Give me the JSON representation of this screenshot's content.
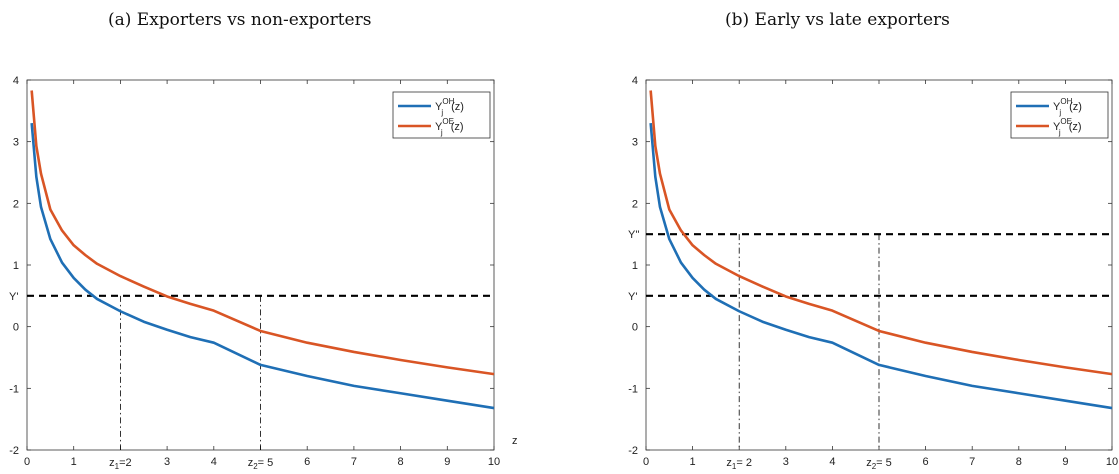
{
  "colors": {
    "oh": "#1f6fb5",
    "oe": "#d95525",
    "axis": "#333333",
    "guide": "#000000"
  },
  "chart_data": [
    {
      "type": "line",
      "title": "(a) Exporters vs non-exporters",
      "xlabel": "z",
      "ylabel": "",
      "xlim": [
        0,
        10
      ],
      "ylim": [
        -2,
        4
      ],
      "xticks": [
        "0",
        "1",
        "2",
        "3",
        "4",
        "5",
        "6",
        "7",
        "8",
        "9",
        "10"
      ],
      "xticks_hidden": [
        2,
        5
      ],
      "yticks": [
        "-2",
        "-1",
        "0",
        "1",
        "2",
        "3",
        "4"
      ],
      "legend_position": "top-right",
      "series": [
        {
          "name_base": "Y",
          "name_sub": "j",
          "name_sup": "OH",
          "name_arg": "(z)",
          "color": "#1f6fb5",
          "x": [
            0.1,
            0.2,
            0.3,
            0.5,
            0.75,
            1,
            1.25,
            1.5,
            2,
            2.5,
            3,
            3.5,
            4,
            5,
            6,
            7,
            8,
            9,
            10
          ],
          "y": [
            3.3,
            2.43,
            1.94,
            1.42,
            1.04,
            0.79,
            0.6,
            0.45,
            0.25,
            0.08,
            -0.05,
            -0.17,
            -0.26,
            -0.62,
            -0.8,
            -0.96,
            -1.08,
            -1.2,
            -1.32
          ]
        },
        {
          "name_base": "Y",
          "name_sub": "j",
          "name_sup": "OE",
          "name_arg": "(z)",
          "color": "#d95525",
          "x": [
            0.1,
            0.2,
            0.3,
            0.5,
            0.75,
            1,
            1.25,
            1.5,
            2,
            2.5,
            3,
            3.5,
            4,
            5,
            6,
            7,
            8,
            9,
            10
          ],
          "y": [
            3.83,
            2.93,
            2.48,
            1.9,
            1.56,
            1.32,
            1.16,
            1.02,
            0.82,
            0.65,
            0.49,
            0.37,
            0.26,
            -0.07,
            -0.26,
            -0.41,
            -0.54,
            -0.66,
            -0.77
          ]
        }
      ],
      "hlines": [
        {
          "y": 0.5,
          "label": "Y'"
        }
      ],
      "vlines": [
        {
          "x": 2,
          "label_base": "z",
          "label_sub": "1",
          "label_rest": "=2"
        },
        {
          "x": 5,
          "label_base": "z",
          "label_sub": "2",
          "label_rest": "= 5"
        }
      ]
    },
    {
      "type": "line",
      "title": "(b) Early vs late exporters",
      "xlabel": "",
      "ylabel": "",
      "xlim": [
        0,
        10
      ],
      "ylim": [
        -2,
        4
      ],
      "xticks": [
        "0",
        "1",
        "2",
        "3",
        "4",
        "5",
        "6",
        "7",
        "8",
        "9",
        "10"
      ],
      "xticks_hidden": [
        2,
        5
      ],
      "yticks": [
        "-2",
        "-1",
        "0",
        "1",
        "2",
        "3",
        "4"
      ],
      "legend_position": "top-right",
      "series": [
        {
          "name_base": "Y",
          "name_sub": "j",
          "name_sup": "OH",
          "name_arg": "(z)",
          "color": "#1f6fb5",
          "x": [
            0.1,
            0.2,
            0.3,
            0.5,
            0.75,
            1,
            1.25,
            1.5,
            2,
            2.5,
            3,
            3.5,
            4,
            5,
            6,
            7,
            8,
            9,
            10
          ],
          "y": [
            3.3,
            2.43,
            1.94,
            1.42,
            1.04,
            0.79,
            0.6,
            0.45,
            0.25,
            0.08,
            -0.05,
            -0.17,
            -0.26,
            -0.62,
            -0.8,
            -0.96,
            -1.08,
            -1.2,
            -1.32
          ]
        },
        {
          "name_base": "Y",
          "name_sub": "j",
          "name_sup": "OE",
          "name_arg": "(z)",
          "color": "#d95525",
          "x": [
            0.1,
            0.2,
            0.3,
            0.5,
            0.75,
            1,
            1.25,
            1.5,
            2,
            2.5,
            3,
            3.5,
            4,
            5,
            6,
            7,
            8,
            9,
            10
          ],
          "y": [
            3.83,
            2.93,
            2.48,
            1.9,
            1.56,
            1.32,
            1.16,
            1.02,
            0.82,
            0.65,
            0.49,
            0.37,
            0.26,
            -0.07,
            -0.26,
            -0.41,
            -0.54,
            -0.66,
            -0.77
          ]
        }
      ],
      "hlines": [
        {
          "y": 1.5,
          "label": "Y''"
        },
        {
          "y": 0.5,
          "label": "Y'"
        }
      ],
      "vlines": [
        {
          "x": 2,
          "label_base": "z",
          "label_sub": "1",
          "label_rest": "= 2"
        },
        {
          "x": 5,
          "label_base": "z",
          "label_sub": "2",
          "label_rest": "= 5"
        }
      ]
    }
  ]
}
